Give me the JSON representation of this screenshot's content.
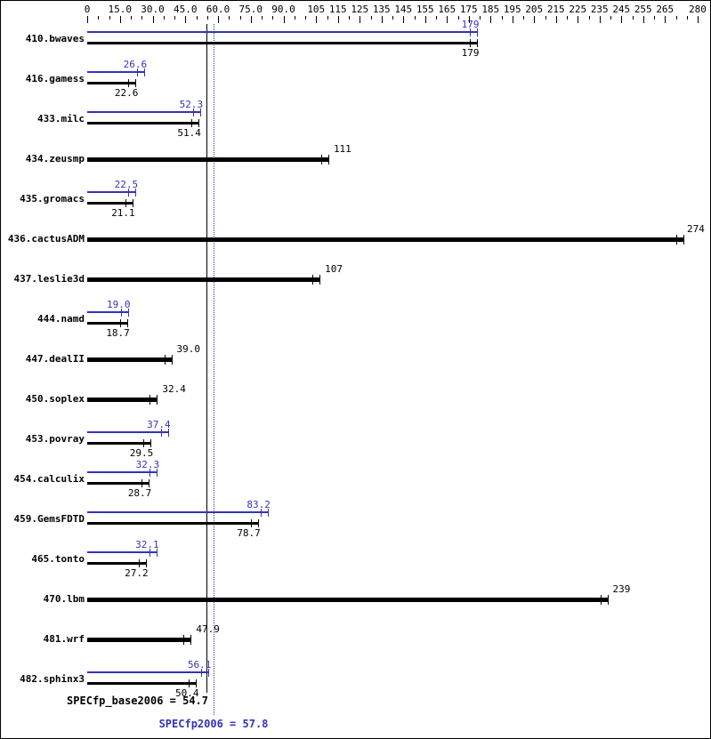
{
  "colors": {
    "peak_blue": "#3333bb",
    "base_black": "#000000",
    "background": "#ffffff"
  },
  "chart_data": {
    "type": "bar",
    "orientation": "horizontal",
    "title": "",
    "xlabel": "",
    "ylabel": "",
    "grid": false,
    "axis": {
      "min": 0,
      "max": 280,
      "minor_tick_step": 5,
      "tick_values": [
        0,
        15,
        30,
        45,
        60,
        75,
        90,
        105,
        115,
        125,
        135,
        145,
        155,
        165,
        175,
        185,
        195,
        205,
        215,
        225,
        235,
        245,
        255,
        265,
        280
      ],
      "tick_labels": [
        "0",
        "15.0",
        "30.0",
        "45.0",
        "60.0",
        "75.0",
        "90.0",
        "105",
        "115",
        "125",
        "135",
        "145",
        "155",
        "165",
        "175",
        "185",
        "195",
        "205",
        "215",
        "225",
        "235",
        "245",
        "255",
        "265",
        "280"
      ]
    },
    "series": [
      {
        "name": "SPECfp2006 (peak)",
        "color": "#3333bb"
      },
      {
        "name": "SPECfp_base2006 (base)",
        "color": "#000000"
      }
    ],
    "benchmarks": [
      {
        "name": "410.bwaves",
        "peak": 179,
        "peak_label": "179",
        "base": 179,
        "base_label": "179"
      },
      {
        "name": "416.gamess",
        "peak": 26.6,
        "peak_label": "26.6",
        "base": 22.6,
        "base_label": "22.6"
      },
      {
        "name": "433.milc",
        "peak": 52.3,
        "peak_label": "52.3",
        "base": 51.4,
        "base_label": "51.4"
      },
      {
        "name": "434.zeusmp",
        "peak": null,
        "peak_label": null,
        "base": 111,
        "base_label": "111"
      },
      {
        "name": "435.gromacs",
        "peak": 22.5,
        "peak_label": "22.5",
        "base": 21.1,
        "base_label": "21.1"
      },
      {
        "name": "436.cactusADM",
        "peak": null,
        "peak_label": null,
        "base": 274,
        "base_label": "274"
      },
      {
        "name": "437.leslie3d",
        "peak": null,
        "peak_label": null,
        "base": 107,
        "base_label": "107"
      },
      {
        "name": "444.namd",
        "peak": 19.0,
        "peak_label": "19.0",
        "base": 18.7,
        "base_label": "18.7"
      },
      {
        "name": "447.dealII",
        "peak": null,
        "peak_label": null,
        "base": 39.0,
        "base_label": "39.0"
      },
      {
        "name": "450.soplex",
        "peak": null,
        "peak_label": null,
        "base": 32.4,
        "base_label": "32.4"
      },
      {
        "name": "453.povray",
        "peak": 37.4,
        "peak_label": "37.4",
        "base": 29.5,
        "base_label": "29.5"
      },
      {
        "name": "454.calculix",
        "peak": 32.3,
        "peak_label": "32.3",
        "base": 28.7,
        "base_label": "28.7"
      },
      {
        "name": "459.GemsFDTD",
        "peak": 83.2,
        "peak_label": "83.2",
        "base": 78.7,
        "base_label": "78.7"
      },
      {
        "name": "465.tonto",
        "peak": 32.1,
        "peak_label": "32.1",
        "base": 27.2,
        "base_label": "27.2"
      },
      {
        "name": "470.lbm",
        "peak": null,
        "peak_label": null,
        "base": 239,
        "base_label": "239"
      },
      {
        "name": "481.wrf",
        "peak": null,
        "peak_label": null,
        "base": 47.9,
        "base_label": "47.9"
      },
      {
        "name": "482.sphinx3",
        "peak": 56.1,
        "peak_label": "56.1",
        "base": 50.4,
        "base_label": "50.4"
      }
    ],
    "reference_lines": [
      {
        "name": "base",
        "label": "SPECfp_base2006 = 54.7",
        "value": 54.7,
        "style": "solid",
        "color": "#000000"
      },
      {
        "name": "peak",
        "label": "SPECfp2006 = 57.8",
        "value": 57.8,
        "style": "dotted",
        "color": "#3333bb"
      }
    ]
  }
}
